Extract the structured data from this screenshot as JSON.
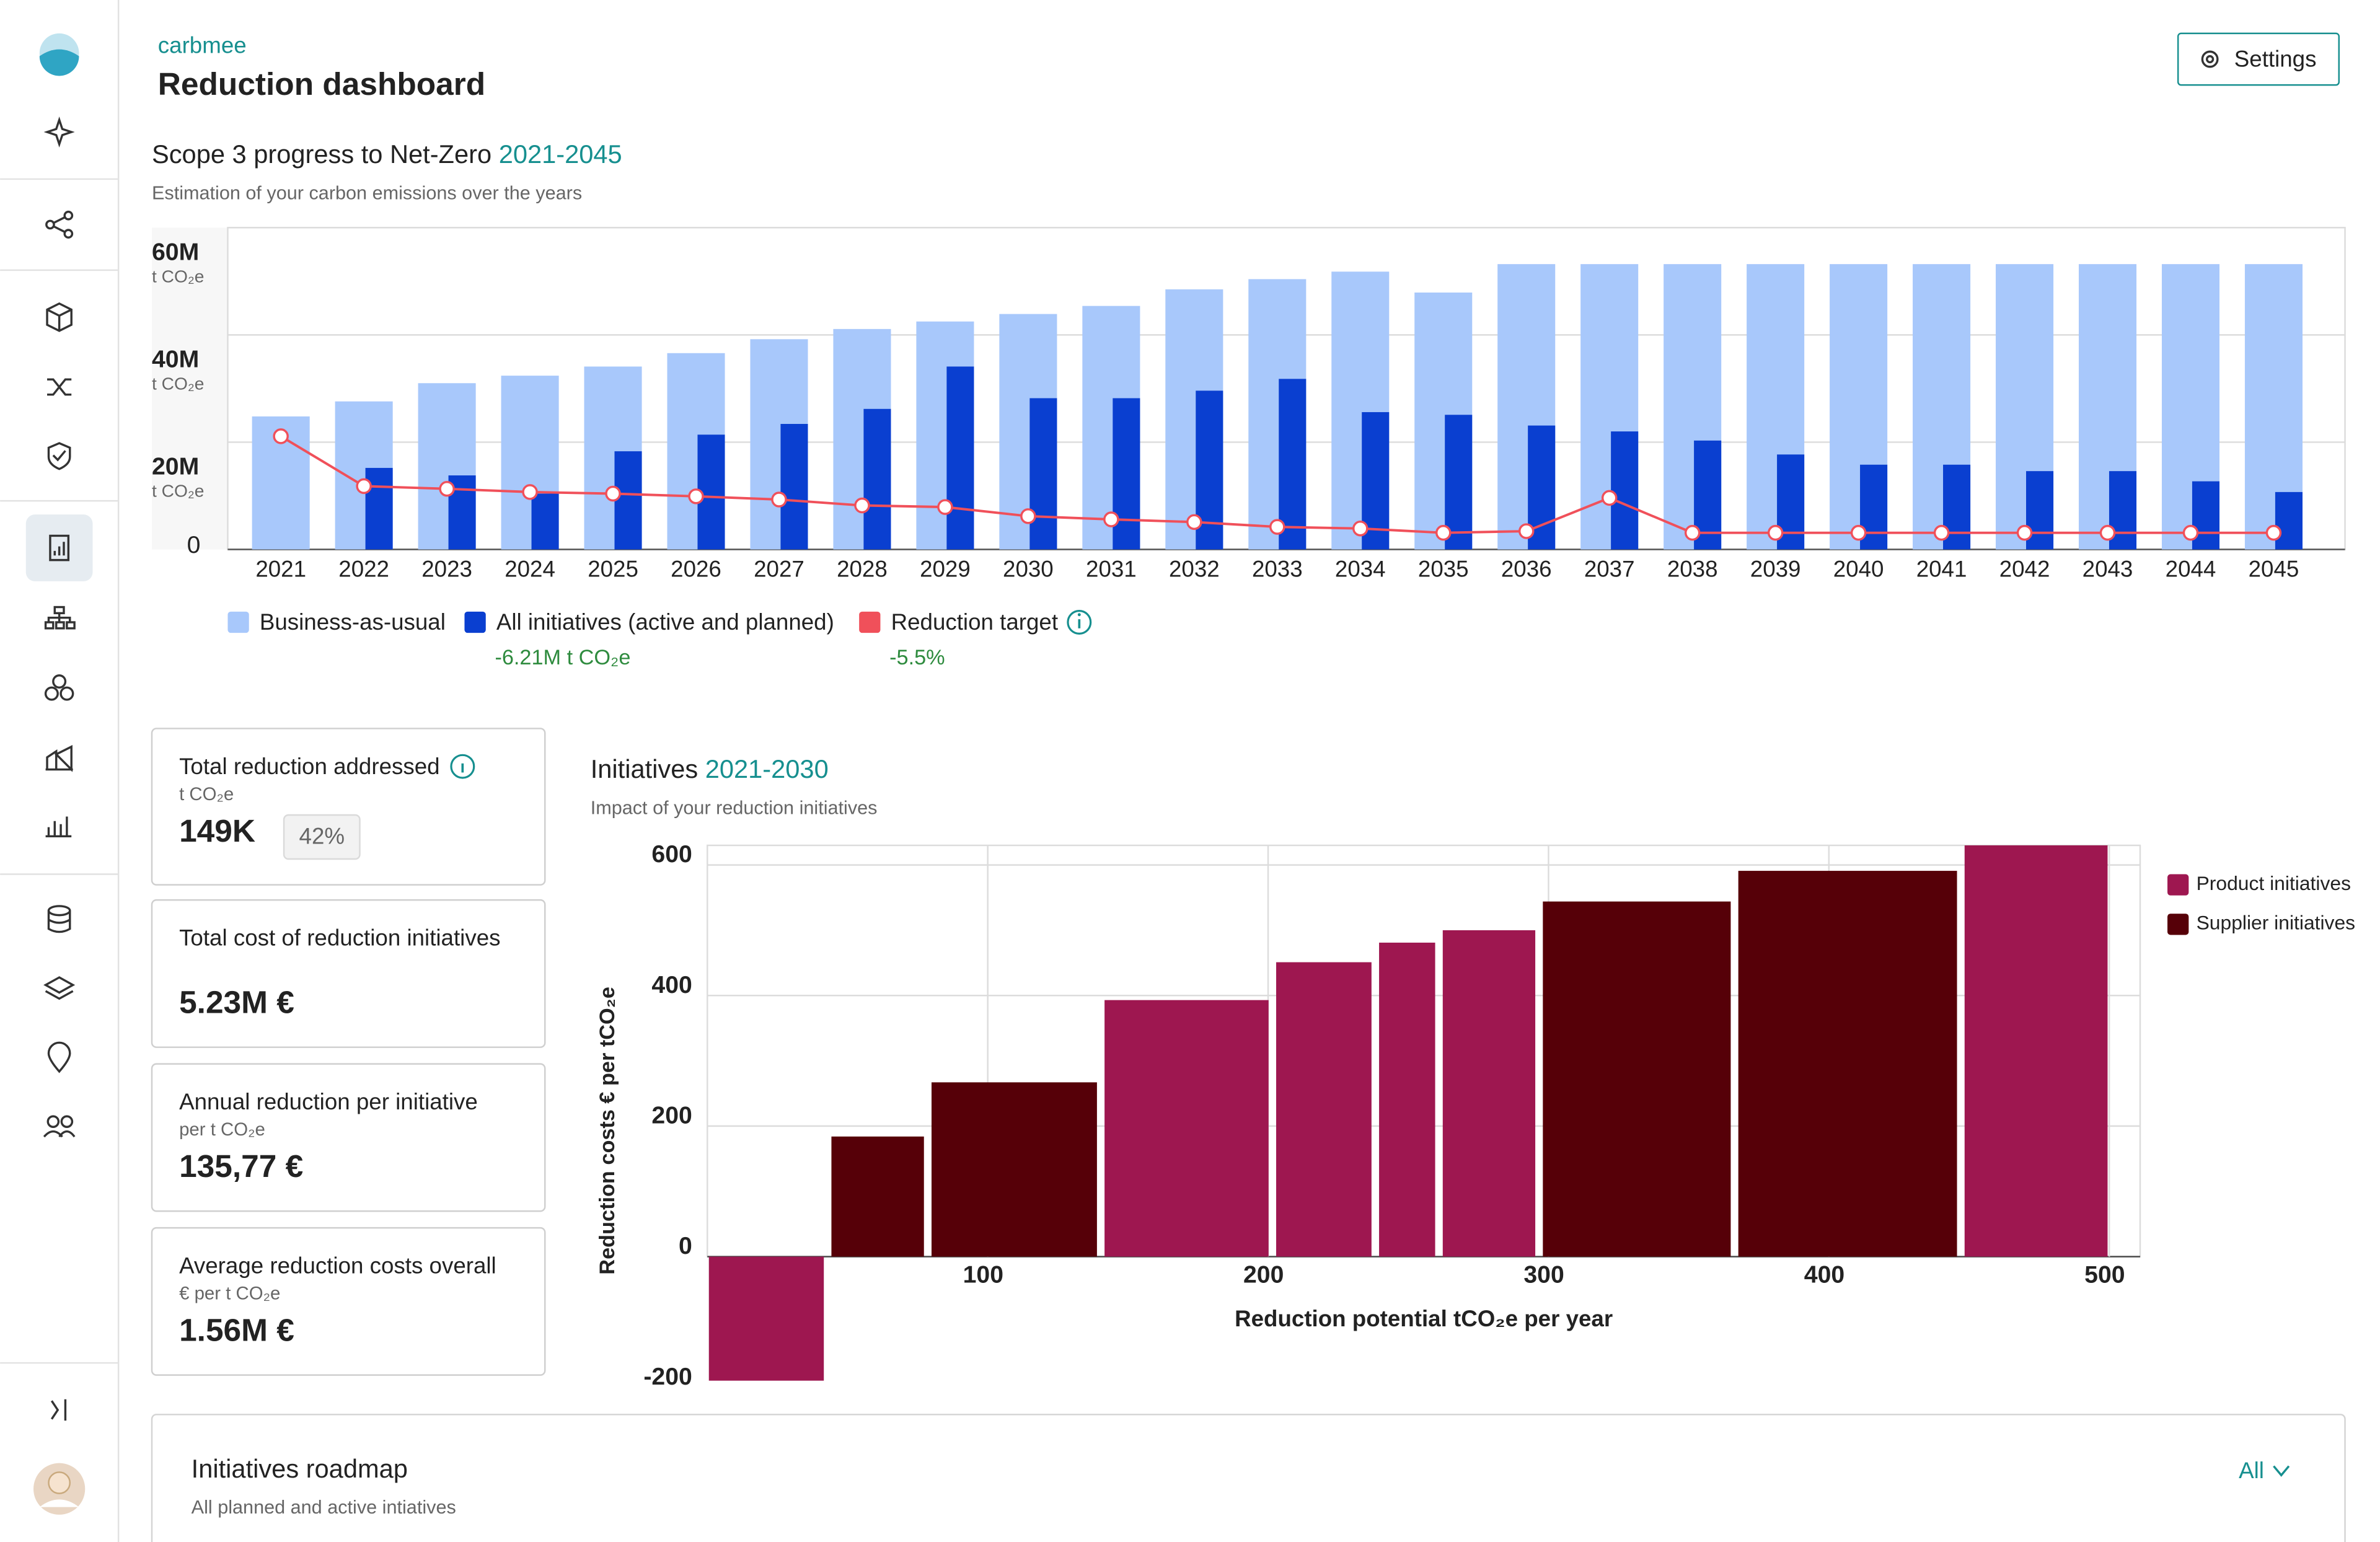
{
  "header": {
    "brand": "carbmee",
    "title": "Reduction dashboard",
    "settings": "Settings"
  },
  "chart_data": [
    {
      "type": "bar",
      "title": "Scope 3 progress to Net-Zero",
      "title_highlight": "2021-2045",
      "subtitle": "Estimation of your carbon emissions over the years",
      "categories": [
        "2021",
        "2022",
        "2023",
        "2024",
        "2025",
        "2026",
        "2027",
        "2028",
        "2029",
        "2030",
        "2031",
        "2032",
        "2033",
        "2034",
        "2035",
        "2036",
        "2037",
        "2038",
        "2039",
        "2040",
        "2041",
        "2042",
        "2043",
        "2044",
        "2045"
      ],
      "series": [
        {
          "name": "Business-as-usual",
          "color": "#a8c8fb",
          "values": [
            24800000,
            27600000,
            31000000,
            32400000,
            34100000,
            36600000,
            39200000,
            41100000,
            42500000,
            43900000,
            45400000,
            48500000,
            50400000,
            51800000,
            47900000,
            53200000,
            53200000,
            53200000,
            53200000,
            53200000,
            53200000,
            53200000,
            53200000,
            53200000,
            53200000
          ]
        },
        {
          "name": "All initiatives (active and planned)",
          "color": "#0a3fd0",
          "note": "-6.21M t CO₂e",
          "values": [
            null,
            15200000,
            13800000,
            10400000,
            18300000,
            21400000,
            23400000,
            26200000,
            34100000,
            28200000,
            28200000,
            29600000,
            31800000,
            25600000,
            25100000,
            23100000,
            22000000,
            20300000,
            17700000,
            15800000,
            15800000,
            14600000,
            14600000,
            12700000,
            10700000
          ]
        },
        {
          "name": "Reduction target",
          "color": "#f0505a",
          "type": "line",
          "note": "-5.5%",
          "values": [
            21100000,
            11800000,
            11300000,
            10700000,
            10400000,
            9900000,
            9300000,
            8200000,
            7900000,
            6200000,
            5600000,
            5100000,
            4200000,
            3900000,
            3100000,
            3400000,
            9600000,
            3100000,
            3100000,
            3100000,
            3100000,
            3100000,
            3100000,
            3100000,
            3100000
          ]
        }
      ],
      "ylim": [
        0,
        60000000
      ],
      "yticks": [
        0,
        {
          "value": 20000000,
          "label": "20M"
        },
        {
          "value": 40000000,
          "label": "40M"
        },
        {
          "value": 60000000,
          "label": "60M"
        }
      ],
      "ytick_unit": "t CO₂e",
      "grid": true
    },
    {
      "type": "variable_width_bar",
      "title": "Initiatives",
      "title_highlight": "2021-2030",
      "subtitle": "Impact of your reduction initiatives",
      "xlabel": "Reduction potential tCO₂e per year",
      "ylabel": "Reduction costs € per tCO₂e",
      "series": [
        {
          "name": "Product initiatives",
          "color": "#9e1750"
        },
        {
          "name": "Supplier initiatives",
          "color": "#560008"
        }
      ],
      "bars": [
        {
          "series": 0,
          "width": 41,
          "value": -190
        },
        {
          "series": 1,
          "width": 33,
          "value": 184
        },
        {
          "series": 1,
          "width": 59,
          "value": 267
        },
        {
          "series": 0,
          "width": 58.5,
          "value": 393
        },
        {
          "series": 0,
          "width": 34,
          "value": 451
        },
        {
          "series": 0,
          "width": 20,
          "value": 481
        },
        {
          "series": 0,
          "width": 33,
          "value": 500
        },
        {
          "series": 1,
          "width": 67,
          "value": 544
        },
        {
          "series": 1,
          "width": 78,
          "value": 591
        },
        {
          "series": 0,
          "width": 51,
          "value": 630
        }
      ],
      "xlim": [
        0,
        511
      ],
      "xticks": [
        100,
        200,
        300,
        400,
        500
      ],
      "ylim": [
        -200,
        630
      ],
      "yticks": [
        -200,
        0,
        200,
        400,
        600
      ],
      "grid": true
    }
  ],
  "kpis": [
    {
      "title": "Total reduction addressed",
      "unit": "t CO₂e",
      "value": "149K",
      "badge": "42%"
    },
    {
      "title": "Total cost of reduction initiatives",
      "value": "5.23M €"
    },
    {
      "title": "Annual reduction per initiative",
      "unit": "per t CO₂e",
      "value": "135,77 €"
    },
    {
      "title": "Average reduction costs overall",
      "unit": "€ per t CO₂e",
      "value": "1.56M €"
    }
  ],
  "roadmap": {
    "title": "Initiatives roadmap",
    "subtitle": "All planned and active intiatives",
    "filter": "All"
  }
}
